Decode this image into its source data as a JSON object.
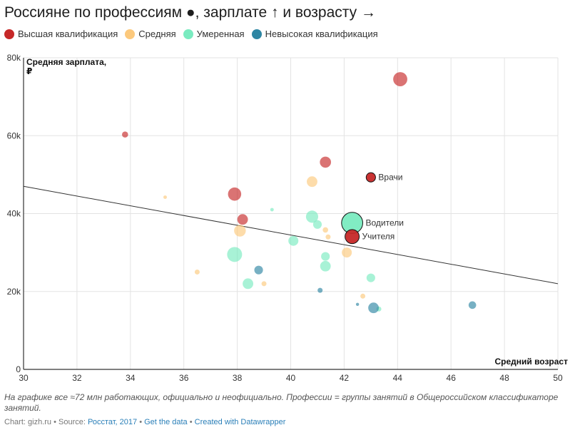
{
  "title": "Россияне по профессиям ●, зарплате ↑ и возрасту →",
  "legend": [
    {
      "label": "Высшая квалификация",
      "color": "#c62828"
    },
    {
      "label": "Средняя",
      "color": "#fcc97d"
    },
    {
      "label": "Умеренная",
      "color": "#7aebc0"
    },
    {
      "label": "Невысокая квалификация",
      "color": "#2e86a3"
    }
  ],
  "chart_data": {
    "type": "scatter",
    "title": "Россияне по профессиям ●, зарплате ↑ и возрасту →",
    "xlabel": "Средний возраст",
    "ylabel_lines": [
      "Средняя зарплата,",
      "₽"
    ],
    "xlim": [
      30,
      50
    ],
    "ylim": [
      0,
      80000
    ],
    "x_ticks": [
      30,
      32,
      34,
      36,
      38,
      40,
      42,
      44,
      46,
      48,
      50
    ],
    "y_ticks": [
      0,
      20000,
      40000,
      60000,
      80000
    ],
    "y_tick_labels": [
      "0",
      "20k",
      "40k",
      "60k",
      "80k"
    ],
    "grid": true,
    "legend_position": "top-left",
    "trendline": {
      "x": [
        30,
        50
      ],
      "y": [
        47000,
        22000
      ]
    },
    "series": [
      {
        "name": "Высшая квалификация",
        "color": "#c62828",
        "points": [
          {
            "x": 33.8,
            "y": 60300,
            "size": 1.5
          },
          {
            "x": 37.9,
            "y": 45000,
            "size": 7
          },
          {
            "x": 38.2,
            "y": 38500,
            "size": 4.5
          },
          {
            "x": 41.3,
            "y": 53200,
            "size": 5
          },
          {
            "x": 44.1,
            "y": 74500,
            "size": 8
          }
        ]
      },
      {
        "name": "Средняя",
        "color": "#fcc97d",
        "points": [
          {
            "x": 35.3,
            "y": 44200,
            "size": 0.5
          },
          {
            "x": 36.5,
            "y": 25000,
            "size": 1
          },
          {
            "x": 38.1,
            "y": 35600,
            "size": 5.5
          },
          {
            "x": 39.0,
            "y": 22000,
            "size": 1
          },
          {
            "x": 40.8,
            "y": 48200,
            "size": 4.5
          },
          {
            "x": 41.3,
            "y": 35800,
            "size": 1.2
          },
          {
            "x": 41.4,
            "y": 34000,
            "size": 1
          },
          {
            "x": 42.1,
            "y": 30000,
            "size": 4
          },
          {
            "x": 42.7,
            "y": 18800,
            "size": 1
          }
        ]
      },
      {
        "name": "Умеренная",
        "color": "#7aebc0",
        "points": [
          {
            "x": 37.9,
            "y": 29500,
            "size": 9
          },
          {
            "x": 38.4,
            "y": 22000,
            "size": 4.5
          },
          {
            "x": 39.3,
            "y": 41000,
            "size": 0.5
          },
          {
            "x": 40.1,
            "y": 33000,
            "size": 4
          },
          {
            "x": 40.8,
            "y": 39200,
            "size": 6
          },
          {
            "x": 41.0,
            "y": 37200,
            "size": 3
          },
          {
            "x": 41.3,
            "y": 29000,
            "size": 3
          },
          {
            "x": 41.3,
            "y": 26500,
            "size": 4.5
          },
          {
            "x": 43.0,
            "y": 23500,
            "size": 3
          },
          {
            "x": 43.3,
            "y": 15500,
            "size": 1
          }
        ]
      },
      {
        "name": "Невысокая квалификация",
        "color": "#2e86a3",
        "points": [
          {
            "x": 38.8,
            "y": 25500,
            "size": 3
          },
          {
            "x": 41.1,
            "y": 20300,
            "size": 1
          },
          {
            "x": 42.5,
            "y": 16700,
            "size": 0.4
          },
          {
            "x": 43.1,
            "y": 15800,
            "size": 4.5
          },
          {
            "x": 46.8,
            "y": 16500,
            "size": 2.3
          }
        ]
      }
    ],
    "highlighted": [
      {
        "label": "Водители",
        "x": 42.3,
        "y": 37600,
        "size": 18,
        "color": "#7aebc0"
      },
      {
        "label": "Учителя",
        "x": 42.3,
        "y": 34100,
        "size": 8,
        "color": "#c62828"
      },
      {
        "label": "Врачи",
        "x": 43.0,
        "y": 49300,
        "size": 3.5,
        "color": "#c62828"
      }
    ]
  },
  "notes": "На графике все ≈72 млн работающих, официально и неофициально. Профессии = группы занятий в Общероссийском классификаторе занятий.",
  "footer": {
    "chart_prefix": "Chart: gizh.ru • Source: ",
    "source_link": "Росстат, 2017",
    "get_data": "Get the data",
    "created_with": "Created with Datawrapper",
    "separator": " • "
  }
}
